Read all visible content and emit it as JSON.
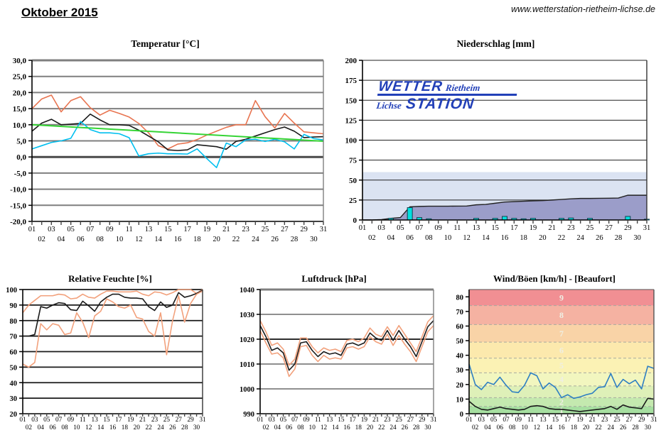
{
  "header": {
    "title": "Oktober 2015",
    "website": "www.wetterstation-rietheim-lichse.de"
  },
  "logo": {
    "wetter": "WETTER",
    "rietheim": "Rietheim",
    "lichse": "Lichse",
    "station": "STATION",
    "color": "#2240b8"
  },
  "days": [
    "01",
    "02",
    "03",
    "04",
    "05",
    "06",
    "07",
    "08",
    "09",
    "10",
    "11",
    "12",
    "13",
    "14",
    "15",
    "16",
    "17",
    "18",
    "19",
    "20",
    "21",
    "22",
    "23",
    "24",
    "25",
    "26",
    "27",
    "28",
    "29",
    "30",
    "31"
  ],
  "chart_data": [
    {
      "type": "line",
      "title": "Temperatur [°C]",
      "ylim": [
        -20,
        30
      ],
      "ytick_labels": [
        "30,0",
        "25,0",
        "20,0",
        "15,0",
        "10,0",
        "5,0",
        "0,0",
        "-5,0",
        "-10,0",
        "-15,0",
        "-20,0"
      ],
      "series": [
        {
          "name": "temp-max",
          "color": "#e87450",
          "values": [
            15,
            18,
            19.2,
            14,
            17.5,
            18.7,
            15.3,
            13,
            14.5,
            13.5,
            12.4,
            10.4,
            7.5,
            3.5,
            2.5,
            4,
            4.4,
            5.4,
            6.8,
            8,
            9.2,
            10,
            10,
            17.5,
            12.5,
            9,
            13.5,
            10.5,
            7.8,
            7.5,
            7.2
          ]
        },
        {
          "name": "temp-mittel",
          "color": "#1a1a1a",
          "values": [
            8,
            10.5,
            11.7,
            10,
            10.2,
            10.4,
            13.3,
            11.5,
            10,
            10,
            9.8,
            8.3,
            6.5,
            4.7,
            2.2,
            2,
            2.2,
            3.8,
            3.5,
            3.2,
            2.4,
            4.8,
            5.5,
            6.5,
            7.5,
            8.5,
            9.3,
            8,
            6,
            6.2,
            6.3
          ]
        },
        {
          "name": "temp-min",
          "color": "#00bfef",
          "values": [
            2.5,
            3.5,
            4.5,
            5,
            5.8,
            11,
            8.5,
            7.5,
            7.5,
            7.2,
            6,
            0.3,
            1,
            1.2,
            1,
            1,
            0.9,
            2.5,
            -0.5,
            -3.3,
            4.3,
            3.2,
            5.3,
            5.5,
            4.8,
            5.5,
            4.7,
            2.5,
            7,
            5.7,
            5.3
          ]
        },
        {
          "name": "temp-trend",
          "color": "#35d435",
          "trend": true,
          "values": [
            10,
            4.9
          ]
        }
      ]
    },
    {
      "type": "area-bar",
      "title": "Niederschlag [mm]",
      "ylim": [
        0,
        200
      ],
      "ytick_labels": [
        "200",
        "175",
        "150",
        "125",
        "100",
        "75",
        "50",
        "25",
        "0"
      ],
      "background_band": {
        "from": 0,
        "to": 60,
        "color": "#dbe3f2"
      },
      "cumulative": {
        "name": "monatssumme",
        "fill": "#9b9dc9",
        "line": "#222222",
        "values": [
          0,
          0,
          0.5,
          2,
          3,
          16.5,
          17,
          17.3,
          17.3,
          17.3,
          17.4,
          17.5,
          19,
          19.5,
          21,
          22.5,
          23,
          23.5,
          24,
          24.3,
          25,
          25.7,
          26.5,
          27,
          27,
          27.2,
          27.3,
          27.5,
          31,
          31,
          31
        ]
      },
      "daily": {
        "name": "tagesniederschlag",
        "color": "#00e0e0",
        "border": "#16404e",
        "values": [
          0,
          0,
          0,
          2,
          0,
          15.5,
          3,
          1.5,
          0,
          0,
          0,
          0,
          2,
          0,
          2,
          4.5,
          2,
          1.5,
          2,
          0,
          0,
          2,
          2.5,
          0,
          2,
          0,
          0,
          0,
          4.5,
          0,
          1
        ]
      }
    },
    {
      "type": "line",
      "title": "Relative Feuchte [%]",
      "ylim": [
        20,
        100
      ],
      "ytick_labels": [
        "100",
        "90",
        "80",
        "70",
        "60",
        "50",
        "40",
        "30",
        "20"
      ],
      "series": [
        {
          "name": "feuchte-max",
          "color": "#f2a17c",
          "values": [
            85,
            90,
            93,
            96,
            96,
            96,
            97,
            96.5,
            94,
            94.5,
            97,
            95,
            94.5,
            97,
            99,
            99,
            98.5,
            98.5,
            98.5,
            99,
            97,
            96,
            98.5,
            98,
            96.5,
            98,
            100,
            100,
            100,
            97.5,
            100
          ]
        },
        {
          "name": "feuchte-mittel",
          "color": "#1a1a1a",
          "values": [
            70,
            70,
            71,
            89,
            88,
            90,
            91.5,
            91,
            87,
            86.5,
            92.5,
            89.5,
            86,
            92,
            95,
            97,
            97,
            95,
            94.5,
            94.5,
            94,
            89,
            86.5,
            92,
            88.5,
            90,
            98,
            95,
            96,
            97.5,
            99.5
          ]
        },
        {
          "name": "feuchte-min",
          "color": "#f2a17c",
          "values": [
            52,
            50,
            53,
            78,
            74,
            78,
            77,
            71,
            72,
            85,
            79,
            69,
            83,
            86,
            94,
            92,
            89,
            88,
            90,
            82,
            81,
            73,
            70,
            85,
            58,
            80,
            96,
            79,
            91,
            97,
            99
          ]
        }
      ]
    },
    {
      "type": "line",
      "title": "Luftdruck [hPa]",
      "ylim": [
        990,
        1040
      ],
      "ytick_labels": [
        "1040",
        "1030",
        "1020",
        "1010",
        "1000",
        "990"
      ],
      "series": [
        {
          "name": "druck-max",
          "color": "#f2a17c",
          "values": [
            1027.5,
            1023,
            1017.5,
            1018.5,
            1016,
            1009.5,
            1012,
            1020.5,
            1020.5,
            1017,
            1014.5,
            1016.5,
            1015.5,
            1016,
            1015,
            1019.5,
            1020,
            1019,
            1020.5,
            1024.5,
            1022,
            1021,
            1025,
            1021.5,
            1025.5,
            1022,
            1018.5,
            1015,
            1021,
            1027,
            1029.5
          ]
        },
        {
          "name": "druck-mittel",
          "color": "#1a1a1a",
          "values": [
            1025.5,
            1021,
            1015.5,
            1016.5,
            1014.5,
            1007.5,
            1010,
            1018.5,
            1019,
            1015.5,
            1013,
            1015,
            1014,
            1014.5,
            1013.5,
            1018,
            1018.5,
            1017.5,
            1018.5,
            1022.5,
            1020.5,
            1019.5,
            1023.5,
            1019.5,
            1023.5,
            1020,
            1017,
            1013,
            1019,
            1025,
            1027.5
          ]
        },
        {
          "name": "druck-min",
          "color": "#f2a17c",
          "values": [
            1023.5,
            1018.5,
            1014,
            1014.5,
            1012.5,
            1005,
            1008,
            1017,
            1017.5,
            1013.5,
            1011,
            1013.5,
            1012,
            1012.5,
            1012,
            1016.5,
            1017,
            1016,
            1017,
            1021,
            1019,
            1018,
            1022,
            1017.5,
            1021.5,
            1018,
            1015,
            1011,
            1017,
            1023,
            1025.5
          ]
        }
      ]
    },
    {
      "type": "line",
      "title": "Wind/Böen [km/h] - [Beaufort]",
      "ylim": [
        0,
        85
      ],
      "ytick_labels": [
        "80",
        "70",
        "60",
        "50",
        "40",
        "30",
        "20",
        "10",
        "0"
      ],
      "beaufort_bands": [
        {
          "label": "1",
          "from": 0,
          "to": 5,
          "color": "#a6dfa0"
        },
        {
          "label": "2",
          "from": 5,
          "to": 11,
          "color": "#c4e9af"
        },
        {
          "label": "3",
          "from": 11,
          "to": 19,
          "color": "#def0b8"
        },
        {
          "label": "4",
          "from": 19,
          "to": 28,
          "color": "#f2f6bf"
        },
        {
          "label": "5",
          "from": 28,
          "to": 38,
          "color": "#fbf2b4"
        },
        {
          "label": "6",
          "from": 38,
          "to": 49,
          "color": "#fce9ad"
        },
        {
          "label": "7",
          "from": 49,
          "to": 61,
          "color": "#f9d3a7"
        },
        {
          "label": "8",
          "from": 61,
          "to": 74,
          "color": "#f5b2a2"
        },
        {
          "label": "9",
          "from": 74,
          "to": 85,
          "color": "#f18f93"
        }
      ],
      "series": [
        {
          "name": "boeen",
          "color": "#2e7fc2",
          "values": [
            34,
            20,
            16.5,
            21.5,
            20,
            25,
            19.5,
            15,
            14.5,
            19.5,
            28,
            26,
            17,
            21,
            18,
            11,
            13,
            10.5,
            11.5,
            13,
            14,
            18,
            18.5,
            27.5,
            18,
            23.5,
            20.5,
            23,
            17,
            32.5,
            31
          ]
        },
        {
          "name": "wind-mittel",
          "color": "#1a1a1a",
          "values": [
            8.5,
            5,
            3,
            2.5,
            3.5,
            4.5,
            3.5,
            3,
            2.5,
            3,
            5,
            5.5,
            5,
            3.5,
            3,
            3,
            2.5,
            2,
            1.5,
            2,
            2.5,
            3,
            3.5,
            5,
            3,
            6,
            4.5,
            4,
            3.5,
            10.5,
            10
          ]
        }
      ]
    }
  ]
}
